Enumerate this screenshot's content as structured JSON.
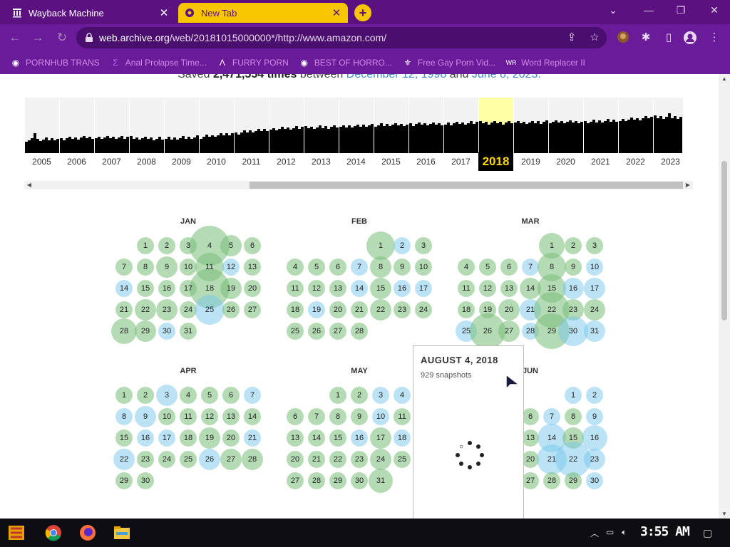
{
  "browser": {
    "tabs": [
      {
        "label": "Wayback Machine",
        "close": "✕"
      },
      {
        "label": "New Tab",
        "close": "✕"
      }
    ],
    "new_tab": "+",
    "url_host": "web.archive.org",
    "url_path": "/web/20181015000000*/http://www.amazon.com/",
    "bookmarks": [
      {
        "label": "PORNHUB TRANS",
        "icon": "globe-icon"
      },
      {
        "label": "Anal Prolapse Time...",
        "icon": "bookmark-icon"
      },
      {
        "label": "FURRY PORN",
        "icon": "lambda-icon"
      },
      {
        "label": "BEST OF HORRO...",
        "icon": "globe-icon"
      },
      {
        "label": "Free Gay Porn Vid...",
        "icon": "bookmark-icon"
      },
      {
        "label": "Word Replacer II",
        "icon": "wr-icon"
      }
    ]
  },
  "summary": {
    "saved_prefix": "Saved",
    "count": "2,471,554 times",
    "between": "between",
    "start": "December 12, 1998",
    "and": "and",
    "end": "June 8, 2023."
  },
  "timeline": {
    "years": [
      "2005",
      "2006",
      "2007",
      "2008",
      "2009",
      "2010",
      "2011",
      "2012",
      "2013",
      "2014",
      "2015",
      "2016",
      "2017",
      "2018",
      "2019",
      "2020",
      "2021",
      "2022",
      "2023"
    ],
    "selected_year": "2018",
    "relative_levels": [
      0.32,
      0.36,
      0.4,
      0.38,
      0.36,
      0.4,
      0.5,
      0.6,
      0.64,
      0.66,
      0.7,
      0.72,
      0.74,
      0.76,
      0.76,
      0.78,
      0.78,
      0.82,
      0.9
    ]
  },
  "calendar": {
    "months": [
      {
        "name": "JAN",
        "start": 1,
        "days": 31,
        "sizes": {
          "4": 56,
          "5": 30,
          "9": 30,
          "11": 40,
          "18": 56,
          "19": 30,
          "22": 30,
          "23": 30,
          "25": 42,
          "28": 36,
          "29": 30
        }
      },
      {
        "name": "FEB",
        "start": 4,
        "days": 28,
        "sizes": {
          "1": 40,
          "8": 30,
          "15": 30,
          "22": 30
        }
      },
      {
        "name": "MAR",
        "start": 4,
        "days": 31,
        "sizes": {
          "1": 36,
          "8": 40,
          "14": 30,
          "15": 40,
          "16": 30,
          "17": 30,
          "20": 30,
          "21": 30,
          "22": 50,
          "23": 30,
          "24": 30,
          "25": 30,
          "26": 50,
          "27": 30,
          "29": 50,
          "30": 42,
          "31": 30
        }
      },
      {
        "name": "APR",
        "start": 0,
        "days": 30,
        "sizes": {
          "3": 30,
          "9": 30,
          "19": 30,
          "22": 30,
          "26": 30,
          "27": 30,
          "28": 30
        }
      },
      {
        "name": "MAY",
        "start": 2,
        "days": 31,
        "sizes": {
          "17": 30,
          "24": 30,
          "31": 34
        }
      },
      {
        "name": "JUN",
        "start": 5,
        "days": 30,
        "sizes": {
          "14": 40,
          "15": 30,
          "16": 36,
          "21": 42,
          "22": 50,
          "23": 30
        }
      }
    ],
    "blue_days": {
      "JAN": [
        12,
        14,
        25,
        30
      ],
      "FEB": [
        2,
        7,
        14,
        16,
        17,
        19
      ],
      "MAR": [
        7,
        10,
        16,
        17,
        21,
        25,
        28,
        30,
        31
      ],
      "APR": [
        3,
        7,
        8,
        9,
        16,
        17,
        21,
        22,
        26
      ],
      "MAY": [
        3,
        4,
        10,
        16,
        18
      ],
      "JUN": [
        1,
        2,
        7,
        9,
        14,
        16,
        21,
        22,
        23,
        30
      ]
    }
  },
  "popup": {
    "date": "AUGUST 4, 2018",
    "snapshots": "929 snapshots"
  },
  "taskbar": {
    "clock": "3:55 AM"
  }
}
